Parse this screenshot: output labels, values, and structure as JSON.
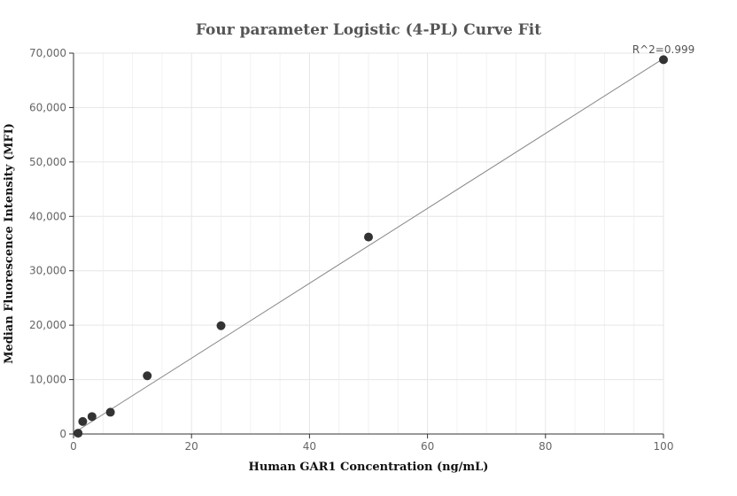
{
  "chart_data": {
    "type": "scatter",
    "title": "Four parameter Logistic (4-PL) Curve Fit",
    "xlabel": "Human GAR1 Concentration (ng/mL)",
    "ylabel": "Median Fluorescence Intensity (MFI)",
    "xlim": [
      0,
      100
    ],
    "ylim": [
      0,
      70000
    ],
    "x_ticks": [
      0,
      20,
      40,
      60,
      80,
      100
    ],
    "y_ticks": [
      0,
      10000,
      20000,
      30000,
      40000,
      50000,
      60000,
      70000
    ],
    "x_tick_labels": [
      "0",
      "20",
      "40",
      "60",
      "80",
      "100"
    ],
    "y_tick_labels": [
      "0",
      "10,000",
      "20,000",
      "30,000",
      "40,000",
      "50,000",
      "60,000",
      "70,000"
    ],
    "grid": true,
    "points": [
      {
        "x": 0.78,
        "y": 150
      },
      {
        "x": 1.56,
        "y": 2300
      },
      {
        "x": 3.13,
        "y": 3200
      },
      {
        "x": 6.25,
        "y": 4000
      },
      {
        "x": 12.5,
        "y": 10700
      },
      {
        "x": 25,
        "y": 19900
      },
      {
        "x": 50,
        "y": 36200
      },
      {
        "x": 100,
        "y": 68800
      }
    ],
    "fit_line": [
      {
        "x": 0.78,
        "y": 700
      },
      {
        "x": 100,
        "y": 69000
      }
    ],
    "annotation": "R^2=0.999",
    "colors": {
      "points": "#333333",
      "fit": "#888888",
      "grid": "#e6e6e6",
      "axis": "#333333"
    }
  }
}
